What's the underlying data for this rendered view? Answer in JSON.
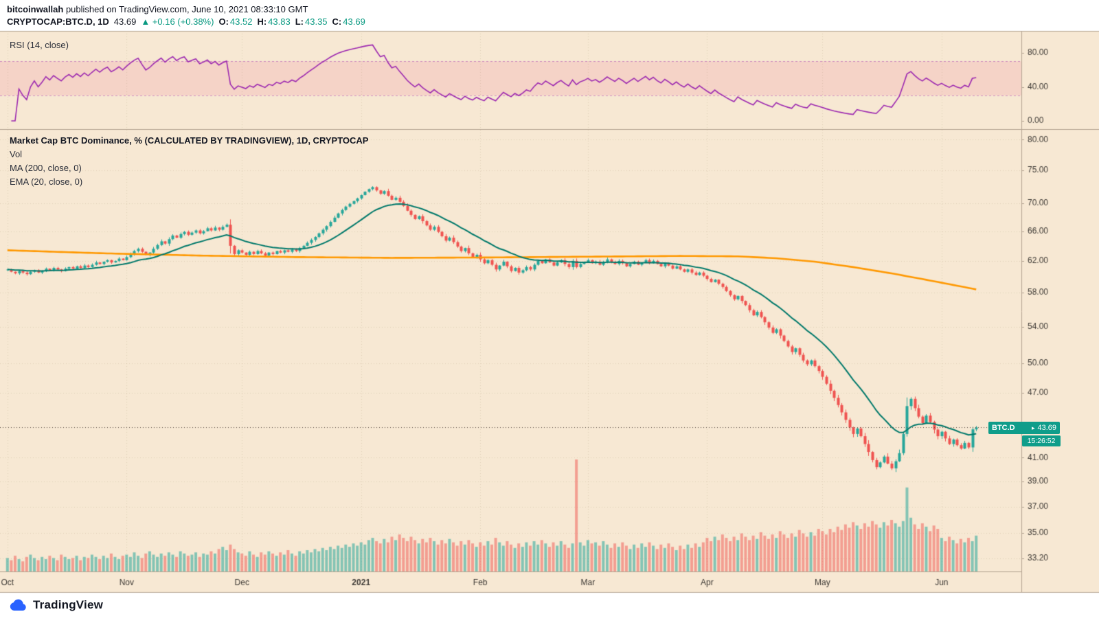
{
  "header": {
    "author": "bitcoinwallah",
    "published": " published on TradingView.com, June 10, 2021 08:33:10 GMT",
    "symbol": "CRYPTOCAP:BTC.D, 1D",
    "last": "43.69",
    "change": "▲ +0.16 (+0.38%)",
    "o_label": "O:",
    "o_value": "43.52",
    "h_label": "H:",
    "h_value": "43.83",
    "l_label": "L:",
    "l_value": "43.35",
    "c_label": "C:",
    "c_value": "43.69"
  },
  "rsi_pane": {
    "legend": "RSI (14, close)"
  },
  "main_pane": {
    "legend_title": "Market Cap BTC Dominance, % (CALCULATED BY TRADINGVIEW), 1D, CRYPTOCAP",
    "legend_vol": "Vol",
    "legend_ma": "MA (200, close, 0)",
    "legend_ema": "EMA (20, close, 0)"
  },
  "price_tag": {
    "symbol": "BTC.D",
    "price": "43.69",
    "countdown": "15:26:52"
  },
  "footer": {
    "brand": "TradingView"
  },
  "palette": {
    "chart_bg": "#f7e8d3",
    "border": "#b3a391",
    "up": "#26a69a",
    "down": "#ef5350",
    "vol_up": "rgba(38,166,154,0.55)",
    "vol_down": "rgba(239,83,80,0.5)",
    "ema": "#00796b",
    "ma": "#ff9800",
    "rsi": "#9c27b0",
    "rsi_band_fill": "rgba(233,30,99,0.10)",
    "rsi_band_line": "rgba(156,39,176,0.45)",
    "tag_bg": "#0f9d8a",
    "accent_text": "#089981"
  },
  "chart_data": {
    "type": "candlestick",
    "title": "Market Cap BTC Dominance, % (CALCULATED BY TRADINGVIEW), 1D, CRYPTOCAP",
    "timeframe": "1D",
    "current": {
      "open": 43.52,
      "high": 43.83,
      "low": 43.35,
      "close": 43.69,
      "change": "+0.16",
      "change_pct": "+0.38%"
    },
    "rsi_period": 14,
    "ema_period": 20,
    "ma_period": 200,
    "rsi_band": [
      30,
      70
    ],
    "first_open": 60.8,
    "months": [
      {
        "label": "Oct",
        "day": 0
      },
      {
        "label": "Nov",
        "day": 31
      },
      {
        "label": "Dec",
        "day": 61
      },
      {
        "label": "2021",
        "day": 92,
        "bold": true
      },
      {
        "label": "Feb",
        "day": 123
      },
      {
        "label": "Mar",
        "day": 151
      },
      {
        "label": "Apr",
        "day": 182
      },
      {
        "label": "May",
        "day": 212
      },
      {
        "label": "Jun",
        "day": 243
      }
    ],
    "price_ticks": [
      {
        "label": "80.00",
        "value": 80
      },
      {
        "label": "75.00",
        "value": 75
      },
      {
        "label": "70.00",
        "value": 70
      },
      {
        "label": "66.00",
        "value": 66
      },
      {
        "label": "62.00",
        "value": 62
      },
      {
        "label": "58.00",
        "value": 58
      },
      {
        "label": "54.00",
        "value": 54
      },
      {
        "label": "50.00",
        "value": 50
      },
      {
        "label": "47.00",
        "value": 47
      },
      {
        "label": "41.00",
        "value": 41
      },
      {
        "label": "39.00",
        "value": 39
      },
      {
        "label": "37.00",
        "value": 37
      },
      {
        "label": "35.00",
        "value": 35
      },
      {
        "label": "33.20",
        "value": 33.2
      }
    ],
    "rsi_ticks": [
      {
        "label": "80.00",
        "value": 80
      },
      {
        "label": "40.00",
        "value": 40
      },
      {
        "label": "0.00",
        "value": 0
      }
    ],
    "ma200_keypoints": [
      [
        0,
        63.4
      ],
      [
        25,
        63.0
      ],
      [
        50,
        62.7
      ],
      [
        75,
        62.5
      ],
      [
        100,
        62.4
      ],
      [
        125,
        62.45
      ],
      [
        150,
        62.55
      ],
      [
        175,
        62.65
      ],
      [
        190,
        62.6
      ],
      [
        200,
        62.35
      ],
      [
        210,
        61.9
      ],
      [
        220,
        61.2
      ],
      [
        230,
        60.4
      ],
      [
        240,
        59.5
      ],
      [
        252,
        58.4
      ]
    ],
    "closes": [
      60.9,
      60.6,
      60.4,
      60.7,
      60.5,
      60.3,
      60.6,
      60.8,
      60.5,
      60.7,
      61.0,
      60.8,
      61.1,
      60.9,
      60.7,
      61.0,
      61.2,
      61.0,
      61.3,
      61.1,
      61.4,
      61.2,
      61.5,
      61.8,
      61.6,
      61.9,
      62.1,
      61.8,
      62.0,
      62.3,
      62.1,
      62.5,
      62.9,
      63.3,
      63.6,
      63.2,
      62.8,
      63.1,
      63.6,
      64.1,
      64.6,
      64.3,
      64.9,
      65.4,
      65.1,
      65.6,
      65.9,
      65.5,
      65.8,
      66.1,
      65.7,
      66.0,
      66.4,
      66.1,
      66.5,
      66.2,
      66.6,
      66.9,
      64.0,
      62.9,
      63.4,
      63.1,
      62.8,
      63.2,
      62.9,
      63.3,
      63.0,
      62.7,
      63.1,
      62.9,
      63.3,
      63.1,
      63.4,
      63.2,
      63.5,
      63.3,
      63.7,
      64.0,
      64.4,
      64.8,
      65.2,
      65.7,
      66.2,
      66.7,
      67.3,
      67.9,
      68.5,
      69.0,
      69.5,
      69.9,
      70.3,
      70.7,
      71.2,
      71.7,
      72.1,
      72.4,
      71.9,
      71.4,
      71.8,
      71.1,
      70.5,
      70.8,
      70.2,
      69.6,
      68.9,
      68.3,
      67.7,
      68.1,
      67.4,
      66.8,
      66.2,
      66.6,
      65.9,
      65.3,
      64.7,
      65.1,
      64.5,
      63.9,
      63.3,
      63.7,
      63.0,
      62.5,
      62.8,
      62.2,
      61.7,
      62.1,
      61.5,
      60.9,
      61.4,
      61.9,
      61.3,
      60.7,
      61.1,
      60.5,
      60.8,
      61.2,
      60.9,
      61.5,
      62.0,
      61.7,
      62.2,
      61.8,
      61.4,
      61.8,
      62.1,
      61.6,
      61.2,
      62.0,
      61.2,
      61.6,
      61.8,
      62.1,
      61.7,
      61.9,
      61.5,
      61.8,
      62.2,
      61.9,
      61.6,
      62.0,
      61.7,
      61.3,
      61.6,
      61.9,
      61.5,
      61.8,
      62.1,
      61.7,
      62.0,
      61.6,
      61.3,
      61.7,
      61.4,
      61.0,
      61.3,
      60.9,
      60.6,
      60.9,
      60.5,
      60.2,
      60.5,
      60.1,
      59.7,
      59.3,
      59.6,
      59.1,
      58.7,
      58.2,
      57.7,
      57.2,
      57.6,
      57.0,
      56.5,
      55.9,
      55.3,
      55.7,
      55.1,
      54.5,
      53.9,
      53.3,
      53.7,
      53.0,
      52.4,
      51.8,
      51.2,
      51.6,
      50.9,
      50.3,
      49.9,
      50.3,
      49.7,
      49.2,
      48.6,
      47.9,
      47.2,
      46.5,
      45.8,
      45.1,
      44.4,
      43.7,
      43.1,
      43.6,
      42.9,
      42.2,
      41.5,
      40.8,
      40.2,
      40.6,
      41.1,
      40.5,
      40.1,
      40.7,
      41.4,
      43.1,
      45.7,
      46.4,
      45.5,
      44.7,
      44.1,
      44.8,
      44.2,
      43.5,
      42.9,
      43.3,
      42.7,
      42.2,
      42.6,
      42.1,
      41.8,
      42.3,
      41.9,
      43.52,
      43.69
    ],
    "volumes": [
      0.12,
      0.1,
      0.14,
      0.11,
      0.09,
      0.13,
      0.15,
      0.12,
      0.1,
      0.13,
      0.11,
      0.14,
      0.12,
      0.1,
      0.15,
      0.13,
      0.11,
      0.12,
      0.14,
      0.1,
      0.13,
      0.12,
      0.15,
      0.13,
      0.11,
      0.14,
      0.12,
      0.16,
      0.13,
      0.11,
      0.14,
      0.15,
      0.13,
      0.17,
      0.14,
      0.12,
      0.16,
      0.18,
      0.15,
      0.13,
      0.16,
      0.14,
      0.17,
      0.15,
      0.13,
      0.18,
      0.16,
      0.14,
      0.15,
      0.17,
      0.13,
      0.16,
      0.15,
      0.18,
      0.16,
      0.2,
      0.22,
      0.19,
      0.24,
      0.2,
      0.17,
      0.16,
      0.14,
      0.18,
      0.15,
      0.13,
      0.17,
      0.15,
      0.18,
      0.16,
      0.14,
      0.17,
      0.15,
      0.19,
      0.16,
      0.14,
      0.18,
      0.16,
      0.19,
      0.17,
      0.2,
      0.18,
      0.21,
      0.19,
      0.22,
      0.2,
      0.23,
      0.21,
      0.24,
      0.22,
      0.25,
      0.23,
      0.26,
      0.24,
      0.28,
      0.3,
      0.27,
      0.25,
      0.29,
      0.26,
      0.31,
      0.28,
      0.33,
      0.3,
      0.27,
      0.31,
      0.28,
      0.25,
      0.29,
      0.26,
      0.3,
      0.27,
      0.24,
      0.28,
      0.25,
      0.29,
      0.26,
      0.23,
      0.27,
      0.24,
      0.28,
      0.25,
      0.22,
      0.26,
      0.23,
      0.27,
      0.24,
      0.3,
      0.26,
      0.23,
      0.27,
      0.24,
      0.21,
      0.25,
      0.22,
      0.26,
      0.23,
      0.27,
      0.24,
      0.28,
      0.25,
      0.22,
      0.26,
      0.23,
      0.27,
      0.24,
      0.21,
      0.25,
      1.0,
      0.26,
      0.23,
      0.28,
      0.25,
      0.26,
      0.23,
      0.27,
      0.24,
      0.21,
      0.25,
      0.22,
      0.26,
      0.23,
      0.2,
      0.24,
      0.21,
      0.25,
      0.22,
      0.26,
      0.23,
      0.2,
      0.24,
      0.21,
      0.25,
      0.22,
      0.19,
      0.23,
      0.2,
      0.24,
      0.21,
      0.25,
      0.22,
      0.26,
      0.3,
      0.27,
      0.31,
      0.28,
      0.33,
      0.3,
      0.27,
      0.31,
      0.28,
      0.34,
      0.31,
      0.28,
      0.32,
      0.29,
      0.35,
      0.32,
      0.29,
      0.33,
      0.3,
      0.36,
      0.33,
      0.3,
      0.34,
      0.31,
      0.37,
      0.34,
      0.31,
      0.35,
      0.32,
      0.38,
      0.36,
      0.33,
      0.38,
      0.35,
      0.4,
      0.37,
      0.42,
      0.39,
      0.44,
      0.41,
      0.38,
      0.43,
      0.4,
      0.45,
      0.42,
      0.39,
      0.44,
      0.41,
      0.46,
      0.43,
      0.4,
      0.45,
      0.75,
      0.48,
      0.42,
      0.38,
      0.43,
      0.4,
      0.36,
      0.41,
      0.38,
      0.3,
      0.27,
      0.31,
      0.28,
      0.25,
      0.29,
      0.26,
      0.3,
      0.27,
      0.32
    ]
  }
}
